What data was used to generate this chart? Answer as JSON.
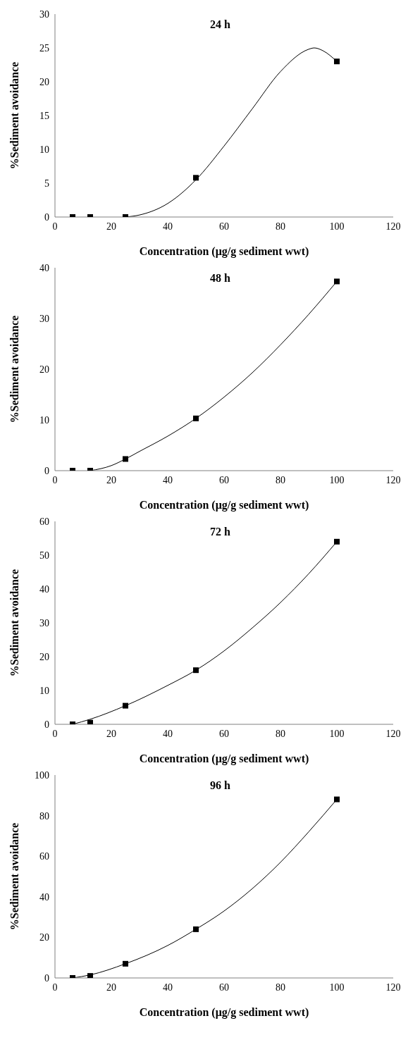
{
  "chart_data": [
    {
      "type": "scatter",
      "annotations": [
        "24 h"
      ],
      "xlabel": "Concentration (μg/g sediment wwt)",
      "ylabel": "%Sediment avoidance",
      "xlim": [
        0,
        120
      ],
      "xticks": [
        0,
        20,
        40,
        60,
        80,
        100,
        120
      ],
      "ylim": [
        0,
        30
      ],
      "yticks": [
        0,
        5,
        10,
        15,
        20,
        25,
        30
      ],
      "series": [
        {
          "type": "scatter",
          "marker": "square",
          "color": "#000000",
          "x": [
            6.25,
            12.5,
            25,
            50,
            100
          ],
          "values": [
            0,
            0,
            0,
            5.8,
            23
          ]
        },
        {
          "type": "line",
          "marker": "none",
          "color": "#000000",
          "x": [
            25,
            30,
            40,
            50,
            60,
            70,
            80,
            90,
            92,
            95,
            100
          ],
          "values": [
            0,
            0.3,
            2,
            5.5,
            10.5,
            16,
            21.5,
            24.8,
            25,
            24.6,
            23
          ]
        }
      ]
    },
    {
      "type": "scatter",
      "annotations": [
        "48 h"
      ],
      "xlabel": "Concentration (μg/g sediment wwt)",
      "ylabel": "%Sediment avoidance",
      "xlim": [
        0,
        120
      ],
      "xticks": [
        0,
        20,
        40,
        60,
        80,
        100,
        120
      ],
      "ylim": [
        0,
        40
      ],
      "yticks": [
        0,
        10,
        20,
        30,
        40
      ],
      "series": [
        {
          "type": "scatter",
          "marker": "square",
          "color": "#000000",
          "x": [
            6.25,
            12.5,
            25,
            50,
            100
          ],
          "values": [
            0,
            0,
            2.3,
            10.3,
            37.3
          ]
        },
        {
          "type": "line",
          "marker": "none",
          "color": "#000000",
          "x": [
            12.5,
            20,
            25,
            30,
            40,
            50,
            60,
            70,
            80,
            90,
            100
          ],
          "values": [
            0,
            1,
            2.3,
            3.8,
            6.8,
            10.3,
            14.5,
            19.3,
            24.8,
            30.8,
            37.3
          ]
        }
      ]
    },
    {
      "type": "scatter",
      "annotations": [
        "72 h"
      ],
      "xlabel": "Concentration (μg/g sediment wwt)",
      "ylabel": "%Sediment avoidance",
      "xlim": [
        0,
        120
      ],
      "xticks": [
        0,
        20,
        40,
        60,
        80,
        100,
        120
      ],
      "ylim": [
        0,
        60
      ],
      "yticks": [
        0,
        10,
        20,
        30,
        40,
        50,
        60
      ],
      "series": [
        {
          "type": "scatter",
          "marker": "square",
          "color": "#000000",
          "x": [
            6.25,
            12.5,
            25,
            50,
            100
          ],
          "values": [
            0,
            0.5,
            5.5,
            16,
            54
          ]
        },
        {
          "type": "line",
          "marker": "none",
          "color": "#000000",
          "x": [
            6.25,
            12.5,
            25,
            40,
            50,
            60,
            70,
            80,
            90,
            100
          ],
          "values": [
            0,
            1.5,
            5.5,
            11.5,
            16,
            21.7,
            28.5,
            36,
            44.5,
            54
          ]
        }
      ]
    },
    {
      "type": "scatter",
      "annotations": [
        "96 h"
      ],
      "xlabel": "Concentration (μg/g sediment wwt)",
      "ylabel": "%Sediment avoidance",
      "xlim": [
        0,
        120
      ],
      "xticks": [
        0,
        20,
        40,
        60,
        80,
        100,
        120
      ],
      "ylim": [
        0,
        100
      ],
      "yticks": [
        0,
        20,
        40,
        60,
        80,
        100
      ],
      "series": [
        {
          "type": "scatter",
          "marker": "square",
          "color": "#000000",
          "x": [
            6.25,
            12.5,
            25,
            50,
            100
          ],
          "values": [
            0,
            1,
            7,
            24,
            88
          ]
        },
        {
          "type": "line",
          "marker": "none",
          "color": "#000000",
          "x": [
            6.25,
            12.5,
            25,
            40,
            50,
            60,
            70,
            80,
            90,
            100
          ],
          "values": [
            0,
            1.5,
            7,
            16,
            24,
            33,
            44,
            57,
            72,
            88
          ]
        }
      ]
    }
  ]
}
